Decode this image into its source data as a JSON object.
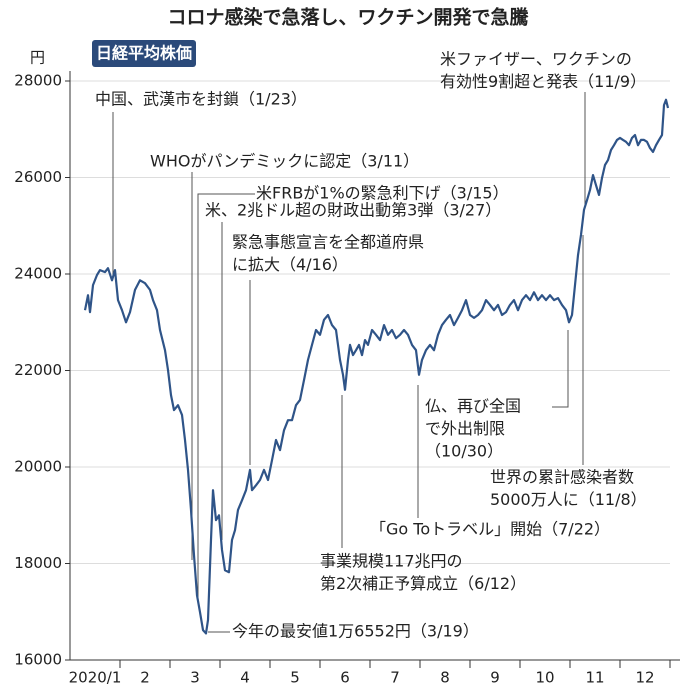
{
  "chart_data": {
    "type": "line",
    "title": "コロナ感染で急落し、ワクチン開発で急騰",
    "y_unit": "円",
    "ylim": [
      16000,
      28000
    ],
    "yticks": [
      16000,
      18000,
      20000,
      22000,
      24000,
      26000,
      28000
    ],
    "xlim": [
      0,
      12
    ],
    "xticks": [
      {
        "value": 0.5,
        "label": "2020/1"
      },
      {
        "value": 1.5,
        "label": "2"
      },
      {
        "value": 2.5,
        "label": "3"
      },
      {
        "value": 3.5,
        "label": "4"
      },
      {
        "value": 4.5,
        "label": "5"
      },
      {
        "value": 5.5,
        "label": "6"
      },
      {
        "value": 6.5,
        "label": "7"
      },
      {
        "value": 7.5,
        "label": "8"
      },
      {
        "value": 8.5,
        "label": "9"
      },
      {
        "value": 9.5,
        "label": "10"
      },
      {
        "value": 10.5,
        "label": "11"
      },
      {
        "value": 11.5,
        "label": "12"
      }
    ],
    "grid": true,
    "x": [
      0.3,
      0.36,
      0.4,
      0.46,
      0.54,
      0.6,
      0.7,
      0.76,
      0.84,
      0.9,
      0.96,
      1.04,
      1.12,
      1.2,
      1.3,
      1.4,
      1.5,
      1.6,
      1.66,
      1.74,
      1.8,
      1.9,
      1.96,
      2.02,
      2.08,
      2.16,
      2.24,
      2.3,
      2.36,
      2.42,
      2.48,
      2.54,
      2.6,
      2.66,
      2.72,
      2.76,
      2.82,
      2.86,
      2.92,
      2.98,
      3.04,
      3.1,
      3.18,
      3.24,
      3.3,
      3.36,
      3.44,
      3.52,
      3.6,
      3.64,
      3.72,
      3.8,
      3.88,
      3.96,
      4.04,
      4.12,
      4.2,
      4.28,
      4.36,
      4.44,
      4.52,
      4.6,
      4.68,
      4.76,
      4.84,
      4.92,
      5,
      5.08,
      5.16,
      5.24,
      5.32,
      5.4,
      5.46,
      5.5,
      5.56,
      5.6,
      5.66,
      5.72,
      5.78,
      5.84,
      5.9,
      5.96,
      6.04,
      6.12,
      6.2,
      6.28,
      6.36,
      6.44,
      6.52,
      6.6,
      6.68,
      6.76,
      6.84,
      6.92,
      6.98,
      7.04,
      7.12,
      7.2,
      7.28,
      7.36,
      7.44,
      7.52,
      7.6,
      7.68,
      7.76,
      7.84,
      7.92,
      8,
      8.08,
      8.16,
      8.24,
      8.32,
      8.4,
      8.48,
      8.56,
      8.64,
      8.72,
      8.8,
      8.88,
      8.96,
      9.04,
      9.12,
      9.2,
      9.28,
      9.36,
      9.44,
      9.52,
      9.6,
      9.68,
      9.76,
      9.84,
      9.92,
      9.98,
      10.04,
      10.1,
      10.16,
      10.22,
      10.28,
      10.34,
      10.4,
      10.46,
      10.52,
      10.58,
      10.64,
      10.7,
      10.76,
      10.82,
      10.88,
      10.94,
      11,
      11.06,
      11.12,
      11.18,
      11.24,
      11.3,
      11.36,
      11.42,
      11.48,
      11.54,
      11.6,
      11.66,
      11.72,
      11.78,
      11.84,
      11.88,
      11.92,
      11.96
    ],
    "series": [
      {
        "name": "日経平均株価",
        "color": "#2f5488",
        "values": [
          23250,
          23560,
          23210,
          23770,
          23980,
          24080,
          24040,
          24120,
          23870,
          24080,
          23460,
          23250,
          23000,
          23210,
          23670,
          23870,
          23810,
          23670,
          23460,
          23250,
          22840,
          22420,
          22010,
          21490,
          21180,
          21280,
          21080,
          20560,
          19940,
          19110,
          18170,
          17340,
          16990,
          16620,
          16552,
          16830,
          18490,
          19520,
          18900,
          19000,
          18280,
          17860,
          17820,
          18490,
          18690,
          19110,
          19310,
          19520,
          19940,
          19520,
          19620,
          19730,
          19940,
          19730,
          20140,
          20560,
          20350,
          20760,
          20970,
          20970,
          21280,
          21390,
          21800,
          22220,
          22530,
          22840,
          22740,
          23050,
          23150,
          22940,
          22840,
          22220,
          21910,
          21600,
          22220,
          22530,
          22320,
          22420,
          22530,
          22320,
          22630,
          22530,
          22840,
          22740,
          22630,
          22940,
          22740,
          22840,
          22670,
          22740,
          22840,
          22740,
          22530,
          22420,
          21910,
          22220,
          22420,
          22530,
          22420,
          22740,
          22940,
          23050,
          23150,
          22940,
          23090,
          23250,
          23460,
          23150,
          23090,
          23150,
          23250,
          23460,
          23360,
          23250,
          23360,
          23150,
          23210,
          23360,
          23460,
          23250,
          23460,
          23560,
          23460,
          23620,
          23460,
          23560,
          23460,
          23560,
          23460,
          23500,
          23360,
          23250,
          23000,
          23150,
          23770,
          24390,
          24810,
          25330,
          25530,
          25740,
          26050,
          25840,
          25640,
          25990,
          26260,
          26360,
          26570,
          26670,
          26780,
          26820,
          26780,
          26740,
          26670,
          26820,
          26880,
          26670,
          26780,
          26780,
          26740,
          26610,
          26530,
          26670,
          26780,
          26880,
          27500,
          27610,
          27440
        ]
      }
    ],
    "annotations": [
      [
        "中国、武漢市を封鎖（1/23）"
      ],
      [
        "WHOがパンデミックに認定（3/11）"
      ],
      [
        "米FRBが1%の緊急利下げ（3/15）"
      ],
      [
        "米、2兆ドル超の財政出動第3弾（3/27）"
      ],
      [
        "緊急事態宣言を全都道府県",
        "に拡大（4/16）"
      ],
      [
        "今年の最安値1万6552円（3/19）"
      ],
      [
        "事業規模117兆円の",
        "第2次補正予算成立（6/12）"
      ],
      [
        "「Go Toトラベル」開始（7/22）"
      ],
      [
        "仏、再び全国",
        "で外出制限",
        "（10/30）"
      ],
      [
        "世界の累計感染者数",
        "5000万人に（11/8）"
      ],
      [
        "米ファイザー、ワクチンの",
        "有効性9割超と発表（11/9）"
      ]
    ]
  }
}
